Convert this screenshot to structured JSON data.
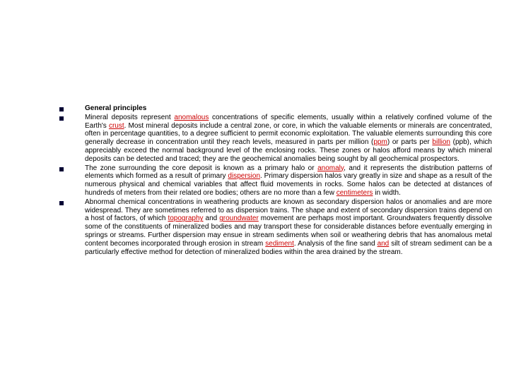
{
  "bullets": [
    {
      "type": "heading",
      "segments": [
        {
          "text": "General principles",
          "bold": true
        }
      ]
    },
    {
      "type": "para",
      "segments": [
        {
          "text": "Mineral deposits represent "
        },
        {
          "text": "anomalous",
          "link": true
        },
        {
          "text": " concentrations of specific elements, usually within a relatively confined volume of the Earth's "
        },
        {
          "text": "crust",
          "link": true
        },
        {
          "text": ". Most mineral deposits include a central zone, or core, in which the valuable elements or minerals are concentrated, often in percentage quantities, to a degree sufficient to permit economic exploitation. The valuable elements surrounding this core generally decrease in concentration until they reach levels, measured in parts per million ("
        },
        {
          "text": "ppm",
          "link": true
        },
        {
          "text": ") or parts per "
        },
        {
          "text": "billion",
          "link": true
        },
        {
          "text": " (ppb), which appreciably exceed the normal background level of the enclosing rocks. These zones or halos afford means by which mineral deposits can be detected and traced; they are the geochemical anomalies being sought by all geochemical prospectors."
        }
      ]
    },
    {
      "type": "para",
      "segments": [
        {
          "text": "The zone surrounding the core deposit is known as a primary halo or "
        },
        {
          "text": "anomaly",
          "link": true
        },
        {
          "text": ", and it represents the distribution patterns of elements which formed as a result of primary "
        },
        {
          "text": "dispersion",
          "link": true
        },
        {
          "text": ". Primary dispersion halos vary greatly in size and shape as a result of the numerous physical and chemical variables that affect fluid movements in rocks. Some halos can be detected at distances of hundreds of meters from their related ore bodies; others are no more than a few "
        },
        {
          "text": "centimeters",
          "link": true
        },
        {
          "text": " in width."
        }
      ]
    },
    {
      "type": "para",
      "segments": [
        {
          "text": "Abnormal chemical concentrations in weathering products are known as secondary dispersion halos or anomalies and are more widespread. They are sometimes referred to as dispersion trains. The shape and extent of secondary dispersion trains depend on a host of factors, of which "
        },
        {
          "text": "topography",
          "link": true
        },
        {
          "text": " and "
        },
        {
          "text": "groundwater",
          "link": true
        },
        {
          "text": " movement are perhaps most important. Groundwaters frequently dissolve some of the constituents of mineralized bodies and may transport these for considerable distances before eventually emerging in springs or streams. Further dispersion may ensue in stream sediments when soil or weathering debris that has anomalous metal content becomes incorporated through erosion in stream "
        },
        {
          "text": "sediment",
          "link": true
        },
        {
          "text": ". Analysis of the fine sand "
        },
        {
          "text": "and",
          "link": true
        },
        {
          "text": " silt of stream sediment can be a particularly effective method for detection of mineralized bodies within the area drained by the stream."
        }
      ]
    }
  ],
  "colors": {
    "bullet": "#000033",
    "link": "#cc0000",
    "text": "#000000",
    "background": "#ffffff"
  },
  "fontsize": 10
}
